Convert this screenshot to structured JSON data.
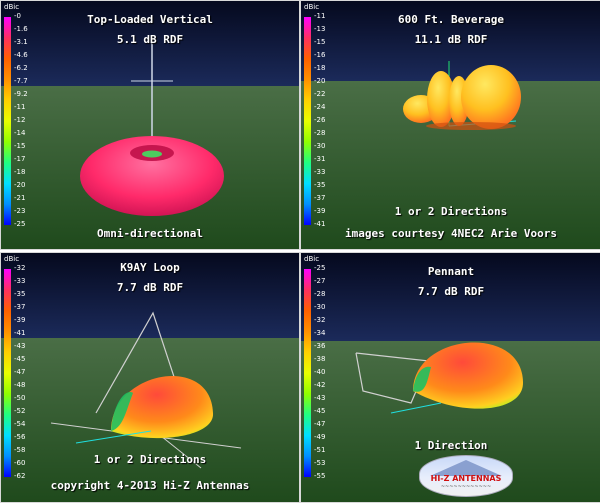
{
  "panels": [
    {
      "title": "Top-Loaded Vertical",
      "gain": "5.1 dB RDF",
      "caption": "Omni-directional",
      "caption2": "",
      "unit": "dBic",
      "scale": [
        "-0",
        "-1.6",
        "-3.1",
        "-4.6",
        "-6.2",
        "-7.7",
        "-9.2",
        "-11",
        "-12",
        "-14",
        "-15",
        "-17",
        "-18",
        "-20",
        "-21",
        "-23",
        "-25"
      ]
    },
    {
      "title": "600 Ft. Beverage",
      "gain": "11.1 dB RDF",
      "caption": "1 or 2 Directions",
      "caption2": "images courtesy 4NEC2 Arie Voors",
      "unit": "dBic",
      "scale": [
        "-11",
        "-13",
        "-15",
        "-16",
        "-18",
        "-20",
        "-22",
        "-24",
        "-26",
        "-28",
        "-30",
        "-31",
        "-33",
        "-35",
        "-37",
        "-39",
        "-41"
      ]
    },
    {
      "title": "K9AY Loop",
      "gain": "7.7 dB RDF",
      "caption": "1 or 2 Directions",
      "caption2": "copyright 4-2013 Hi-Z Antennas",
      "unit": "dBic",
      "scale": [
        "-32",
        "-33",
        "-35",
        "-37",
        "-39",
        "-41",
        "-43",
        "-45",
        "-47",
        "-48",
        "-50",
        "-52",
        "-54",
        "-56",
        "-58",
        "-60",
        "-62"
      ]
    },
    {
      "title": "Pennant",
      "gain": "7.7 dB RDF",
      "caption": "1 Direction",
      "caption2": "",
      "unit": "dBic",
      "scale": [
        "-25",
        "-27",
        "-28",
        "-30",
        "-32",
        "-34",
        "-36",
        "-38",
        "-40",
        "-42",
        "-43",
        "-45",
        "-47",
        "-49",
        "-51",
        "-53",
        "-55"
      ]
    }
  ],
  "logo": {
    "text": "HI-Z ANTENNAS",
    "subtext": "~~~~~~~~~~~~"
  },
  "colors": {
    "sky": "#0b1436",
    "ground": "#2f5e2c",
    "pattern_hot": "#ff2a6a",
    "pattern_warm": "#ff8a1a",
    "pattern_yellow": "#ffe020"
  }
}
